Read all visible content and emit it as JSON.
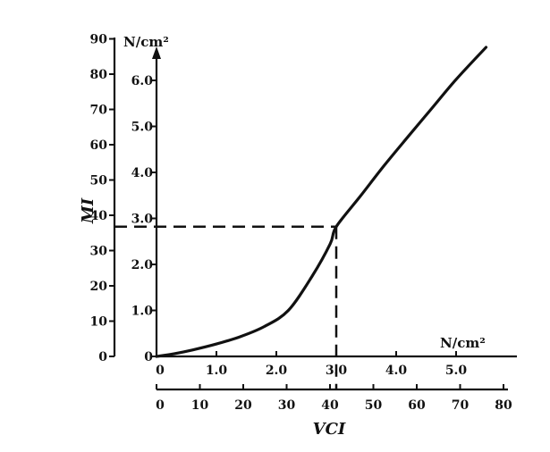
{
  "chart_data": {
    "type": "line",
    "x_unit": "N/cm²",
    "y_unit": "N/cm²",
    "x_ticks": [
      "0",
      "1.0",
      "2.0",
      "3.0",
      "4.0",
      "5.0"
    ],
    "y_ticks": [
      "0",
      "1.0",
      "2.0",
      "3.0",
      "4.0",
      "5.0",
      "6.0"
    ],
    "vci_ticks": [
      "0",
      "10",
      "20",
      "30",
      "40",
      "50",
      "60",
      "70",
      "80"
    ],
    "mi_ticks": [
      "0",
      "10",
      "20",
      "30",
      "40",
      "50",
      "60",
      "70",
      "80",
      "90"
    ],
    "xlabel": "VCI",
    "ylabel": "MI",
    "xlim": [
      0,
      6.0
    ],
    "ylim": [
      0,
      6.6
    ],
    "series": [
      {
        "x": [
          0.0,
          0.3,
          0.6,
          1.0,
          1.4,
          1.8,
          2.2,
          2.6,
          2.9,
          3.0,
          3.4,
          3.8,
          4.2,
          4.6,
          5.0,
          5.5
        ],
        "y": [
          0.0,
          0.06,
          0.14,
          0.27,
          0.43,
          0.65,
          1.0,
          1.75,
          2.45,
          2.82,
          3.48,
          4.15,
          4.78,
          5.4,
          6.02,
          6.72
        ]
      }
    ],
    "guide_point": {
      "x": 3.0,
      "y": 2.82
    },
    "grid": false,
    "legend": "none"
  }
}
